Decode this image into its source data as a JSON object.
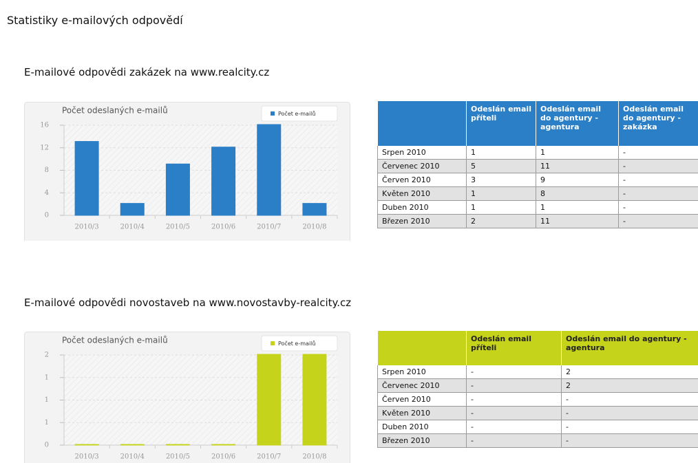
{
  "page": {
    "title": "Statistiky e-mailových odpovědí"
  },
  "sections": [
    {
      "heading": "E-mailové odpovědi zakázek na www.realcity.cz",
      "table": {
        "header": [
          "Odeslán email příteli",
          "Odeslán email do agentury - agentura",
          "Odeslán email do agentury - zakázka"
        ],
        "rows": [
          [
            "Srpen 2010",
            1,
            1,
            "-"
          ],
          [
            "Červenec 2010",
            5,
            11,
            "-"
          ],
          [
            "Červen 2010",
            3,
            9,
            "-"
          ],
          [
            "Květen 2010",
            1,
            8,
            "-"
          ],
          [
            "Duben 2010",
            1,
            1,
            "-"
          ],
          [
            "Březen 2010",
            2,
            11,
            "-"
          ]
        ]
      }
    },
    {
      "heading": "E-mailové odpovědi novostaveb na www.novostavby-realcity.cz",
      "table": {
        "header": [
          "Odeslán email příteli",
          "Odeslán email do agentury - agentura"
        ],
        "rows": [
          [
            "Srpen 2010",
            "-",
            2
          ],
          [
            "Červenec 2010",
            "-",
            2
          ],
          [
            "Červen 2010",
            "-",
            "-"
          ],
          [
            "Květen 2010",
            "-",
            "-"
          ],
          [
            "Duben 2010",
            "-",
            "-"
          ],
          [
            "Březen 2010",
            "-",
            "-"
          ]
        ]
      }
    }
  ],
  "chart_data": [
    {
      "type": "bar",
      "title": "Počet odeslaných e-mailů",
      "categories": [
        "2010/3",
        "2010/4",
        "2010/5",
        "2010/6",
        "2010/7",
        "2010/8"
      ],
      "series": [
        {
          "name": "Počet e-mailů",
          "color": "#2a7fc6",
          "values": [
            13,
            2,
            9,
            12,
            16,
            2
          ]
        }
      ],
      "ylim": [
        0,
        16
      ],
      "yticks": [
        0,
        4,
        8,
        12,
        16
      ],
      "grid": true,
      "legend": "top-right"
    },
    {
      "type": "bar",
      "title": "Počet odeslaných e-mailů",
      "categories": [
        "2010/3",
        "2010/4",
        "2010/5",
        "2010/6",
        "2010/7",
        "2010/8"
      ],
      "series": [
        {
          "name": "Počet e-mailů",
          "color": "#c5d31a",
          "values": [
            0,
            0,
            0,
            0,
            2,
            2
          ]
        }
      ],
      "ylim": [
        0,
        2
      ],
      "yticks": [
        0,
        {
          "value": 0.5,
          "label": "1"
        },
        1,
        {
          "value": 1.5,
          "label": "1"
        },
        2
      ],
      "grid": true,
      "legend": "top-right"
    }
  ]
}
